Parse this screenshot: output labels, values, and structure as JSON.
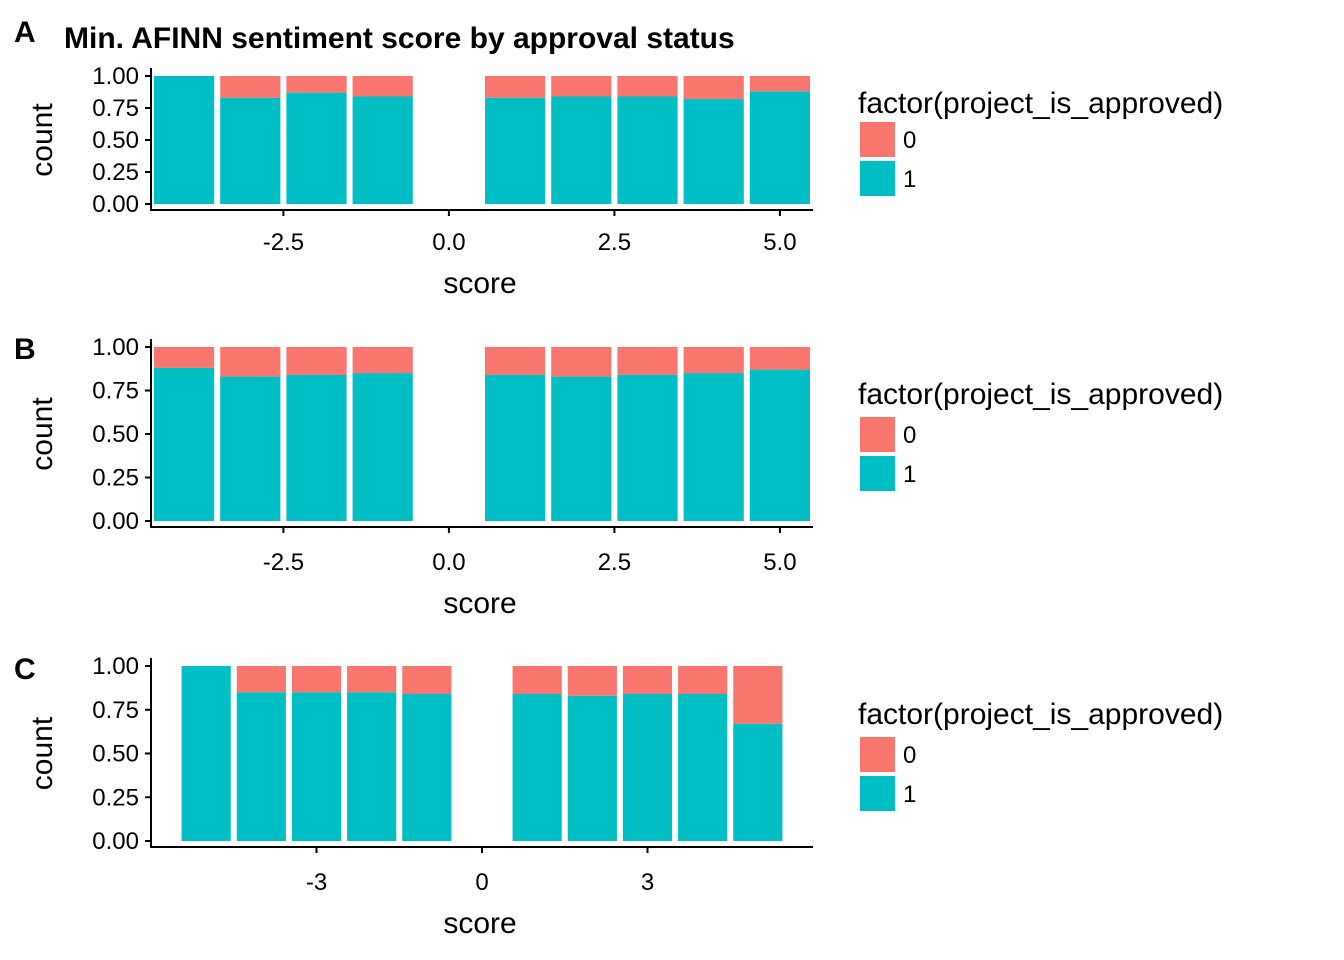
{
  "colors": {
    "status_0": "#F8766D",
    "status_1": "#00BFC4"
  },
  "chart_data": [
    {
      "type": "bar",
      "panel_letter": "A",
      "title": "Min. AFINN sentiment score by approval status",
      "xlabel": "score",
      "ylabel": "count",
      "position": "fill",
      "xlim": [
        -4.5,
        5.5
      ],
      "ylim": [
        0,
        1
      ],
      "x_ticks": [
        -2.5,
        0.0,
        2.5,
        5.0
      ],
      "x_tick_labels": [
        "-2.5",
        "0.0",
        "2.5",
        "5.0"
      ],
      "y_ticks": [
        0,
        0.25,
        0.5,
        0.75,
        1
      ],
      "y_tick_labels": [
        "0.00",
        "0.25",
        "0.50",
        "0.75",
        "1.00"
      ],
      "x": [
        -4,
        -3,
        -2,
        -1,
        1,
        2,
        3,
        4,
        5
      ],
      "series": [
        {
          "name": "1",
          "values": [
            1.0,
            0.83,
            0.87,
            0.84,
            0.83,
            0.84,
            0.84,
            0.82,
            0.88
          ]
        },
        {
          "name": "0",
          "values": [
            0.0,
            0.17,
            0.13,
            0.16,
            0.17,
            0.16,
            0.16,
            0.18,
            0.12
          ]
        }
      ],
      "legend": {
        "title": "factor(project_is_approved)",
        "entries": [
          "0",
          "1"
        ],
        "placement": "right"
      }
    },
    {
      "type": "bar",
      "panel_letter": "B",
      "title": "",
      "xlabel": "score",
      "ylabel": "count",
      "position": "fill",
      "xlim": [
        -4.5,
        5.5
      ],
      "ylim": [
        0,
        1
      ],
      "x_ticks": [
        -2.5,
        0.0,
        2.5,
        5.0
      ],
      "x_tick_labels": [
        "-2.5",
        "0.0",
        "2.5",
        "5.0"
      ],
      "y_ticks": [
        0,
        0.25,
        0.5,
        0.75,
        1
      ],
      "y_tick_labels": [
        "0.00",
        "0.25",
        "0.50",
        "0.75",
        "1.00"
      ],
      "x": [
        -4,
        -3,
        -2,
        -1,
        1,
        2,
        3,
        4,
        5
      ],
      "series": [
        {
          "name": "1",
          "values": [
            0.88,
            0.83,
            0.84,
            0.85,
            0.84,
            0.83,
            0.84,
            0.85,
            0.87
          ]
        },
        {
          "name": "0",
          "values": [
            0.12,
            0.17,
            0.16,
            0.15,
            0.16,
            0.17,
            0.16,
            0.15,
            0.13
          ]
        }
      ],
      "legend": {
        "title": "factor(project_is_approved)",
        "entries": [
          "0",
          "1"
        ],
        "placement": "right"
      }
    },
    {
      "type": "bar",
      "panel_letter": "C",
      "title": "",
      "xlabel": "score",
      "ylabel": "count",
      "position": "fill",
      "xlim": [
        -6,
        6
      ],
      "ylim": [
        0,
        1
      ],
      "x_ticks": [
        -3,
        0,
        3
      ],
      "x_tick_labels": [
        "-3",
        "0",
        "3"
      ],
      "y_ticks": [
        0,
        0.25,
        0.5,
        0.75,
        1
      ],
      "y_tick_labels": [
        "0.00",
        "0.25",
        "0.50",
        "0.75",
        "1.00"
      ],
      "x": [
        -5,
        -4,
        -3,
        -2,
        -1,
        1,
        2,
        3,
        4,
        5
      ],
      "series": [
        {
          "name": "1",
          "values": [
            1.0,
            0.85,
            0.85,
            0.85,
            0.84,
            0.84,
            0.83,
            0.84,
            0.84,
            0.67
          ]
        },
        {
          "name": "0",
          "values": [
            0.0,
            0.15,
            0.15,
            0.15,
            0.16,
            0.16,
            0.17,
            0.16,
            0.16,
            0.33
          ]
        }
      ],
      "legend": {
        "title": "factor(project_is_approved)",
        "entries": [
          "0",
          "1"
        ],
        "placement": "right"
      }
    }
  ]
}
